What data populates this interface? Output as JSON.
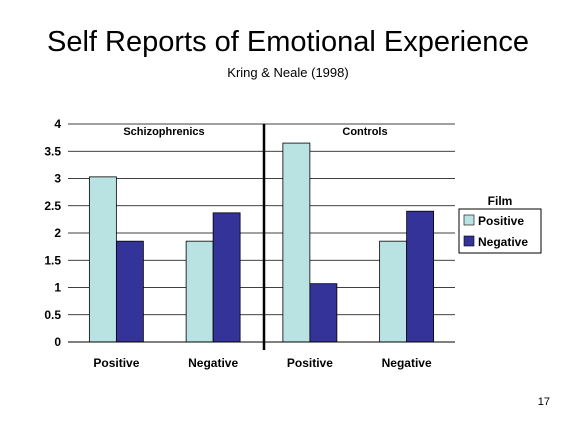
{
  "slide": {
    "title": "Self Reports of Emotional Experience",
    "subtitle": "Kring & Neale (1998)",
    "number": "17"
  },
  "chart_data": {
    "type": "bar",
    "title": "",
    "xlabel": "",
    "ylabel": "",
    "ylim": [
      0,
      4
    ],
    "yticks": [
      "0",
      "0.5",
      "1",
      "1.5",
      "2",
      "2.5",
      "3",
      "3.5",
      "4"
    ],
    "grid": true,
    "legend": {
      "title": "Film",
      "placement": "right"
    },
    "groups": [
      "Schizophrenics",
      "Controls"
    ],
    "categories": [
      "Positive",
      "Negative",
      "Positive",
      "Negative"
    ],
    "series": [
      {
        "name": "Positive",
        "color": "#b9e2e2",
        "values": [
          3.03,
          1.85,
          3.65,
          1.85
        ]
      },
      {
        "name": "Negative",
        "color": "#333399",
        "values": [
          1.85,
          2.37,
          1.07,
          2.4
        ]
      }
    ]
  }
}
